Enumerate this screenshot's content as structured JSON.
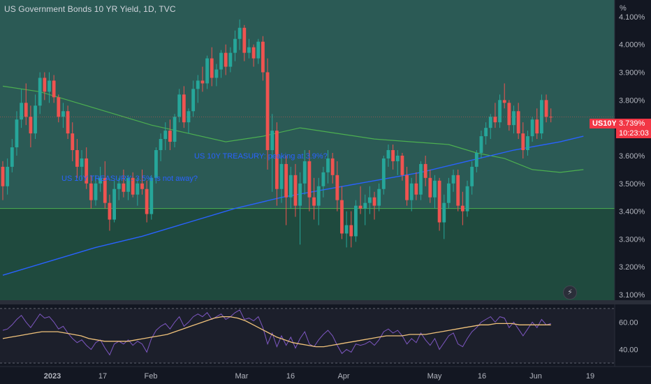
{
  "header": {
    "title": "US Government Bonds 10 YR Yield, 1D, TVC",
    "unit": "%"
  },
  "symbol_tag": "US10Y",
  "price_tag": "3.739%",
  "countdown": "10:23:03",
  "colors": {
    "up": "#26a69a",
    "down": "#ef5350",
    "ma_long": "#2962ff",
    "ma_mid": "#4caf50",
    "rsi": "#7e57c2",
    "rsi_ma": "#f0c27b",
    "bg": "#131722",
    "zone_upper": "#2b5a55",
    "zone_lower": "#1f4a3e"
  },
  "icons": {
    "alert": "lightning-icon"
  },
  "chart_data": {
    "type": "candlestick",
    "y_axis": {
      "ticks": [
        "4.100%",
        "4.000%",
        "3.900%",
        "3.800%",
        "3.700%",
        "3.600%",
        "3.500%",
        "3.400%",
        "3.300%",
        "3.200%",
        "3.100%"
      ],
      "ylim": [
        3.08,
        4.16
      ]
    },
    "x_axis": {
      "ticks": [
        "2023",
        "17",
        "Feb",
        "Mar",
        "16",
        "Apr",
        "May",
        "16",
        "Jun",
        "19"
      ]
    },
    "start_index_labels": {
      "2023": 12,
      "17": 22,
      "Feb": 33,
      "Mar": 53,
      "16": 64,
      "Apr": 75,
      "May": 95,
      "16b": 106,
      "Jun": 117,
      "19": 129
    },
    "zones": [
      {
        "name": "upper",
        "from": 3.41,
        "to": 4.16
      },
      {
        "name": "lower",
        "from": 3.08,
        "to": 3.41
      }
    ],
    "annotations": [
      {
        "text": "US 10Y TREASURY: peaking at 3.9%?",
        "x": 3.6
      },
      {
        "text": "US 10Y TREASURY: 3.5% is not away?",
        "x": 3.52
      }
    ],
    "candles": [
      [
        3.56,
        3.58,
        3.44,
        3.49
      ],
      [
        3.49,
        3.59,
        3.46,
        3.56
      ],
      [
        3.56,
        3.66,
        3.54,
        3.63
      ],
      [
        3.63,
        3.76,
        3.6,
        3.73
      ],
      [
        3.73,
        3.84,
        3.7,
        3.79
      ],
      [
        3.79,
        3.86,
        3.71,
        3.74
      ],
      [
        3.74,
        3.78,
        3.63,
        3.68
      ],
      [
        3.68,
        3.82,
        3.66,
        3.78
      ],
      [
        3.78,
        3.9,
        3.75,
        3.88
      ],
      [
        3.88,
        3.9,
        3.8,
        3.83
      ],
      [
        3.83,
        3.9,
        3.79,
        3.87
      ],
      [
        3.87,
        3.89,
        3.79,
        3.81
      ],
      [
        3.81,
        3.82,
        3.72,
        3.74
      ],
      [
        3.74,
        3.79,
        3.7,
        3.76
      ],
      [
        3.76,
        3.78,
        3.66,
        3.68
      ],
      [
        3.68,
        3.72,
        3.58,
        3.62
      ],
      [
        3.62,
        3.66,
        3.52,
        3.56
      ],
      [
        3.56,
        3.62,
        3.51,
        3.59
      ],
      [
        3.59,
        3.63,
        3.48,
        3.5
      ],
      [
        3.5,
        3.53,
        3.41,
        3.44
      ],
      [
        3.44,
        3.53,
        3.42,
        3.5
      ],
      [
        3.5,
        3.56,
        3.47,
        3.52
      ],
      [
        3.52,
        3.58,
        3.41,
        3.43
      ],
      [
        3.43,
        3.46,
        3.33,
        3.37
      ],
      [
        3.37,
        3.51,
        3.36,
        3.48
      ],
      [
        3.48,
        3.52,
        3.44,
        3.5
      ],
      [
        3.5,
        3.55,
        3.45,
        3.47
      ],
      [
        3.47,
        3.53,
        3.44,
        3.52
      ],
      [
        3.52,
        3.54,
        3.45,
        3.46
      ],
      [
        3.46,
        3.52,
        3.42,
        3.5
      ],
      [
        3.5,
        3.55,
        3.46,
        3.48
      ],
      [
        3.48,
        3.51,
        3.36,
        3.39
      ],
      [
        3.39,
        3.53,
        3.37,
        3.52
      ],
      [
        3.52,
        3.63,
        3.5,
        3.62
      ],
      [
        3.62,
        3.68,
        3.58,
        3.66
      ],
      [
        3.66,
        3.72,
        3.62,
        3.69
      ],
      [
        3.69,
        3.73,
        3.62,
        3.65
      ],
      [
        3.65,
        3.75,
        3.63,
        3.74
      ],
      [
        3.74,
        3.84,
        3.72,
        3.82
      ],
      [
        3.82,
        3.85,
        3.7,
        3.72
      ],
      [
        3.72,
        3.77,
        3.68,
        3.76
      ],
      [
        3.76,
        3.87,
        3.74,
        3.84
      ],
      [
        3.84,
        3.89,
        3.79,
        3.87
      ],
      [
        3.87,
        3.92,
        3.83,
        3.86
      ],
      [
        3.86,
        3.96,
        3.84,
        3.95
      ],
      [
        3.95,
        3.99,
        3.85,
        3.88
      ],
      [
        3.88,
        3.93,
        3.85,
        3.91
      ],
      [
        3.91,
        3.98,
        3.88,
        3.97
      ],
      [
        3.97,
        4.0,
        3.89,
        3.92
      ],
      [
        3.92,
        3.99,
        3.9,
        3.97
      ],
      [
        3.97,
        4.05,
        3.94,
        4.02
      ],
      [
        4.02,
        4.09,
        3.98,
        4.06
      ],
      [
        4.06,
        4.07,
        3.94,
        3.97
      ],
      [
        3.97,
        4.02,
        3.95,
        3.99
      ],
      [
        3.99,
        4.0,
        3.92,
        3.95
      ],
      [
        3.95,
        4.02,
        3.93,
        4.01
      ],
      [
        4.01,
        4.03,
        3.87,
        3.9
      ],
      [
        3.9,
        3.95,
        3.55,
        3.62
      ],
      [
        3.62,
        3.75,
        3.47,
        3.69
      ],
      [
        3.69,
        3.72,
        3.42,
        3.48
      ],
      [
        3.48,
        3.6,
        3.43,
        3.57
      ],
      [
        3.57,
        3.6,
        3.35,
        3.45
      ],
      [
        3.45,
        3.56,
        3.41,
        3.53
      ],
      [
        3.53,
        3.57,
        3.38,
        3.42
      ],
      [
        3.42,
        3.54,
        3.28,
        3.5
      ],
      [
        3.5,
        3.62,
        3.46,
        3.58
      ],
      [
        3.58,
        3.62,
        3.4,
        3.45
      ],
      [
        3.45,
        3.52,
        3.37,
        3.42
      ],
      [
        3.42,
        3.52,
        3.35,
        3.49
      ],
      [
        3.49,
        3.56,
        3.45,
        3.54
      ],
      [
        3.54,
        3.62,
        3.5,
        3.59
      ],
      [
        3.59,
        3.61,
        3.5,
        3.53
      ],
      [
        3.53,
        3.58,
        3.4,
        3.44
      ],
      [
        3.44,
        3.49,
        3.3,
        3.32
      ],
      [
        3.32,
        3.4,
        3.27,
        3.35
      ],
      [
        3.35,
        3.4,
        3.27,
        3.31
      ],
      [
        3.31,
        3.44,
        3.29,
        3.42
      ],
      [
        3.42,
        3.49,
        3.39,
        3.41
      ],
      [
        3.41,
        3.46,
        3.35,
        3.43
      ],
      [
        3.43,
        3.49,
        3.39,
        3.45
      ],
      [
        3.45,
        3.47,
        3.37,
        3.42
      ],
      [
        3.42,
        3.5,
        3.4,
        3.48
      ],
      [
        3.48,
        3.6,
        3.46,
        3.59
      ],
      [
        3.59,
        3.64,
        3.56,
        3.62
      ],
      [
        3.62,
        3.64,
        3.55,
        3.58
      ],
      [
        3.58,
        3.62,
        3.53,
        3.6
      ],
      [
        3.6,
        3.61,
        3.51,
        3.53
      ],
      [
        3.53,
        3.56,
        3.42,
        3.44
      ],
      [
        3.44,
        3.52,
        3.4,
        3.5
      ],
      [
        3.5,
        3.54,
        3.44,
        3.46
      ],
      [
        3.46,
        3.58,
        3.44,
        3.57
      ],
      [
        3.57,
        3.6,
        3.49,
        3.52
      ],
      [
        3.52,
        3.55,
        3.43,
        3.45
      ],
      [
        3.45,
        3.53,
        3.41,
        3.51
      ],
      [
        3.51,
        3.52,
        3.33,
        3.36
      ],
      [
        3.36,
        3.46,
        3.3,
        3.43
      ],
      [
        3.43,
        3.52,
        3.41,
        3.5
      ],
      [
        3.5,
        3.55,
        3.47,
        3.53
      ],
      [
        3.53,
        3.55,
        3.4,
        3.42
      ],
      [
        3.42,
        3.47,
        3.35,
        3.4
      ],
      [
        3.4,
        3.51,
        3.38,
        3.49
      ],
      [
        3.49,
        3.58,
        3.46,
        3.56
      ],
      [
        3.56,
        3.62,
        3.54,
        3.61
      ],
      [
        3.61,
        3.69,
        3.59,
        3.67
      ],
      [
        3.67,
        3.72,
        3.64,
        3.7
      ],
      [
        3.7,
        3.75,
        3.66,
        3.74
      ],
      [
        3.74,
        3.79,
        3.7,
        3.72
      ],
      [
        3.72,
        3.82,
        3.7,
        3.8
      ],
      [
        3.8,
        3.86,
        3.77,
        3.79
      ],
      [
        3.79,
        3.8,
        3.69,
        3.71
      ],
      [
        3.71,
        3.78,
        3.68,
        3.76
      ],
      [
        3.76,
        3.79,
        3.66,
        3.68
      ],
      [
        3.68,
        3.72,
        3.59,
        3.62
      ],
      [
        3.62,
        3.69,
        3.6,
        3.67
      ],
      [
        3.67,
        3.74,
        3.65,
        3.73
      ],
      [
        3.73,
        3.77,
        3.66,
        3.68
      ],
      [
        3.68,
        3.82,
        3.66,
        3.8
      ],
      [
        3.8,
        3.82,
        3.72,
        3.74
      ],
      [
        3.74,
        3.77,
        3.72,
        3.739
      ]
    ],
    "ma_long": [
      [
        0,
        3.17
      ],
      [
        10,
        3.22
      ],
      [
        20,
        3.27
      ],
      [
        30,
        3.31
      ],
      [
        40,
        3.36
      ],
      [
        50,
        3.41
      ],
      [
        60,
        3.45
      ],
      [
        70,
        3.48
      ],
      [
        80,
        3.51
      ],
      [
        90,
        3.54
      ],
      [
        100,
        3.58
      ],
      [
        110,
        3.62
      ],
      [
        120,
        3.65
      ],
      [
        125,
        3.67
      ]
    ],
    "ma_mid": [
      [
        0,
        3.85
      ],
      [
        8,
        3.83
      ],
      [
        16,
        3.79
      ],
      [
        24,
        3.75
      ],
      [
        32,
        3.71
      ],
      [
        40,
        3.68
      ],
      [
        48,
        3.65
      ],
      [
        56,
        3.67
      ],
      [
        64,
        3.7
      ],
      [
        72,
        3.68
      ],
      [
        80,
        3.66
      ],
      [
        88,
        3.65
      ],
      [
        96,
        3.64
      ],
      [
        102,
        3.61
      ],
      [
        108,
        3.59
      ],
      [
        114,
        3.55
      ],
      [
        120,
        3.54
      ],
      [
        125,
        3.55
      ]
    ],
    "rsi": {
      "ticks": [
        "60.00",
        "40.00"
      ],
      "ylim": [
        30,
        72
      ],
      "values": [
        54,
        55,
        58,
        62,
        65,
        60,
        56,
        61,
        66,
        63,
        64,
        60,
        55,
        57,
        52,
        48,
        45,
        47,
        43,
        40,
        45,
        47,
        41,
        36,
        44,
        46,
        44,
        47,
        43,
        46,
        44,
        38,
        48,
        54,
        57,
        59,
        55,
        60,
        64,
        57,
        60,
        64,
        66,
        64,
        67,
        62,
        64,
        66,
        62,
        64,
        67,
        69,
        62,
        63,
        61,
        64,
        56,
        44,
        52,
        42,
        50,
        43,
        49,
        41,
        48,
        53,
        44,
        42,
        47,
        51,
        54,
        50,
        43,
        37,
        40,
        38,
        44,
        43,
        44,
        46,
        43,
        47,
        53,
        55,
        52,
        54,
        50,
        44,
        48,
        45,
        52,
        47,
        43,
        48,
        40,
        45,
        50,
        52,
        44,
        42,
        48,
        53,
        56,
        60,
        62,
        64,
        60,
        64,
        63,
        56,
        60,
        55,
        50,
        55,
        60,
        56,
        62,
        58,
        59
      ],
      "ma_values": [
        48,
        49,
        50,
        51,
        52,
        53,
        53,
        53,
        52,
        51,
        50,
        48,
        47,
        46,
        46,
        46,
        46,
        47,
        48,
        49,
        50,
        51,
        53,
        55,
        57,
        59,
        61,
        63,
        64,
        64,
        63,
        61,
        58,
        55,
        52,
        49,
        47,
        45,
        44,
        43,
        42,
        42,
        43,
        44,
        45,
        46,
        47,
        48,
        49,
        50,
        50,
        50,
        51,
        51,
        51,
        52,
        53,
        54,
        55,
        56,
        57,
        58,
        58,
        59,
        59,
        59,
        58,
        58,
        58,
        58,
        58
      ]
    }
  }
}
